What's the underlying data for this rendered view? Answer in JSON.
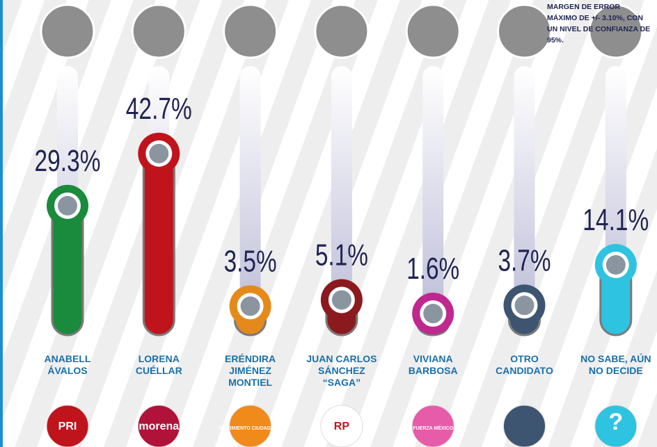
{
  "chart_data": {
    "type": "bar",
    "note": "MARGEN DE ERROR MÁXIMO DE +/- 3.10%, CON UN NIVEL DE CONFIANZA DE 95%.",
    "categories": [
      "ANABELL ÁVALOS",
      "LORENA CUÉLLAR",
      "ERÉNDIRA JIMÉNEZ MONTIEL",
      "JUAN CARLOS SÁNCHEZ “SAGA”",
      "VIVIANA BARBOSA",
      "OTRO CANDIDATO",
      "NO SABE, AÚN NO DECIDE"
    ],
    "values": [
      29.3,
      42.7,
      3.5,
      5.1,
      1.6,
      3.7,
      14.1
    ],
    "value_labels": [
      "29.3%",
      "42.7%",
      "3.5%",
      "5.1%",
      "1.6%",
      "3.7%",
      "14.1%"
    ],
    "colors": [
      "#1a8a3c",
      "#c0141c",
      "#e58a1a",
      "#8b1a1e",
      "#c0278f",
      "#3d5570",
      "#2ec3e0"
    ],
    "logos": [
      "PRI",
      "morena",
      "MOVIMIENTO CIUDADANO",
      "RP",
      "FUERZA MÉXICO",
      null,
      "?"
    ],
    "logo_colors": [
      "#c0141c",
      "#b0123a",
      "#f08a1a",
      "#ffffff",
      "#e75ca8",
      "#3d5570",
      "#2ec3e0"
    ],
    "ylim": [
      0,
      80
    ]
  }
}
